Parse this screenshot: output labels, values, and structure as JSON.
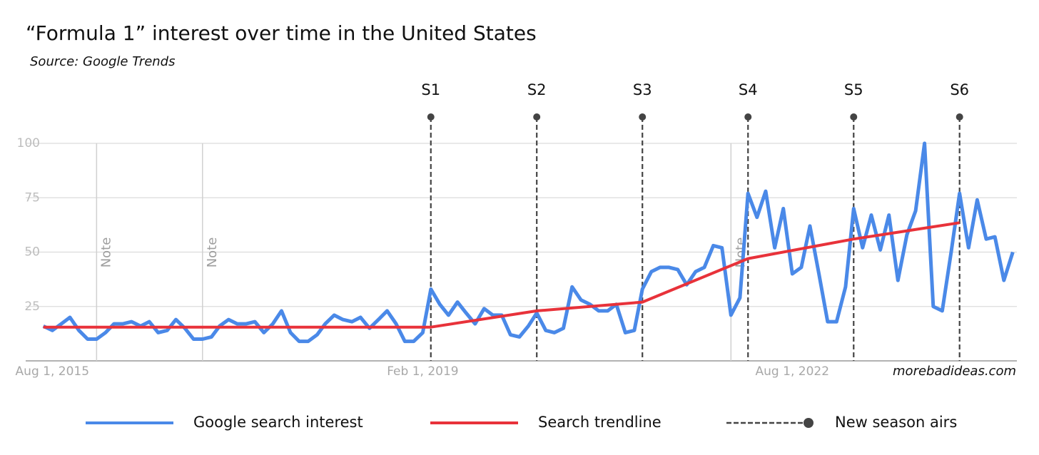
{
  "chart_data": {
    "type": "line",
    "title": "“Formula 1” interest over time in the United States",
    "subtitle": "Source: Google Trends",
    "watermark": "morebadideas.com",
    "xlim": [
      "2015-05-01",
      "2024-09-15"
    ],
    "xticks": [
      {
        "value": "2015-08-01",
        "label": "Aug 1, 2015"
      },
      {
        "value": "2019-02-01",
        "label": "Feb 1, 2019"
      },
      {
        "value": "2022-08-01",
        "label": "Aug 1, 2022"
      }
    ],
    "ylim": [
      0,
      100
    ],
    "yticks": [
      25,
      50,
      75,
      100
    ],
    "grid": true,
    "legend": "bottom",
    "notes": [
      {
        "x": "2016-01-01",
        "label": "Note"
      },
      {
        "x": "2017-01-01",
        "label": "Note"
      },
      {
        "x": "2022-01-01",
        "label": "Note"
      }
    ],
    "series": [
      {
        "name": "Google search interest",
        "color": "#4a89e8",
        "x": [
          "2015-07-01",
          "2015-08-01",
          "2015-09-01",
          "2015-10-01",
          "2015-11-01",
          "2015-12-01",
          "2016-01-01",
          "2016-02-01",
          "2016-03-01",
          "2016-04-01",
          "2016-05-01",
          "2016-06-01",
          "2016-07-01",
          "2016-08-01",
          "2016-09-01",
          "2016-10-01",
          "2016-11-01",
          "2016-12-01",
          "2017-01-01",
          "2017-02-01",
          "2017-03-01",
          "2017-04-01",
          "2017-05-01",
          "2017-06-01",
          "2017-07-01",
          "2017-08-01",
          "2017-09-01",
          "2017-10-01",
          "2017-11-01",
          "2017-12-01",
          "2018-01-01",
          "2018-02-01",
          "2018-03-01",
          "2018-04-01",
          "2018-05-01",
          "2018-06-01",
          "2018-07-01",
          "2018-08-01",
          "2018-09-01",
          "2018-10-01",
          "2018-11-01",
          "2018-12-01",
          "2019-01-01",
          "2019-02-01",
          "2019-03-01",
          "2019-04-01",
          "2019-05-01",
          "2019-06-01",
          "2019-07-01",
          "2019-08-01",
          "2019-09-01",
          "2019-10-01",
          "2019-11-01",
          "2019-12-01",
          "2020-01-01",
          "2020-02-01",
          "2020-03-01",
          "2020-04-01",
          "2020-05-01",
          "2020-06-01",
          "2020-07-01",
          "2020-08-01",
          "2020-09-01",
          "2020-10-01",
          "2020-11-01",
          "2020-12-01",
          "2021-01-01",
          "2021-02-01",
          "2021-03-01",
          "2021-04-01",
          "2021-05-01",
          "2021-06-01",
          "2021-07-01",
          "2021-08-01",
          "2021-09-01",
          "2021-10-01",
          "2021-11-01",
          "2021-12-01",
          "2022-01-01",
          "2022-02-01",
          "2022-03-01",
          "2022-04-01",
          "2022-05-01",
          "2022-06-01",
          "2022-07-01",
          "2022-08-01",
          "2022-09-01",
          "2022-10-01",
          "2022-11-01",
          "2022-12-01",
          "2023-01-01",
          "2023-02-01",
          "2023-03-01",
          "2023-04-01",
          "2023-05-01",
          "2023-06-01",
          "2023-07-01",
          "2023-08-01",
          "2023-09-01",
          "2023-10-01",
          "2023-11-01",
          "2023-12-01",
          "2024-01-01",
          "2024-02-01",
          "2024-03-01",
          "2024-04-01",
          "2024-05-01",
          "2024-06-01",
          "2024-07-01",
          "2024-08-01",
          "2024-09-01"
        ],
        "values": [
          16,
          14,
          17,
          20,
          14,
          10,
          10,
          13,
          17,
          17,
          18,
          16,
          18,
          13,
          14,
          19,
          15,
          10,
          10,
          11,
          16,
          19,
          17,
          17,
          18,
          13,
          17,
          23,
          13,
          9,
          9,
          12,
          17,
          21,
          19,
          18,
          20,
          15,
          19,
          23,
          17,
          9,
          9,
          13,
          33,
          26,
          21,
          27,
          22,
          17,
          24,
          21,
          21,
          12,
          11,
          16,
          22,
          14,
          13,
          15,
          34,
          28,
          26,
          23,
          23,
          26,
          13,
          14,
          33,
          41,
          43,
          43,
          42,
          35,
          41,
          43,
          53,
          52,
          21,
          29,
          77,
          66,
          78,
          52,
          70,
          40,
          43,
          62,
          40,
          18,
          18,
          34,
          70,
          52,
          67,
          51,
          67,
          37,
          58,
          69,
          100,
          25,
          23,
          50,
          77,
          52,
          74,
          56,
          57,
          37,
          50
        ]
      },
      {
        "name": "Search trendline",
        "color": "#e8323a",
        "x": [
          "2015-07-01",
          "2019-03-01",
          "2020-03-01",
          "2021-03-01",
          "2022-03-01",
          "2023-03-01",
          "2024-03-01"
        ],
        "values": [
          15.5,
          15.5,
          23,
          27,
          47,
          56,
          63.5
        ]
      },
      {
        "name": "New season airs",
        "color": "#444444",
        "x": [
          "2019-03-01",
          "2020-03-01",
          "2021-03-01",
          "2022-03-01",
          "2023-03-01",
          "2024-03-01"
        ],
        "labels": [
          "S1",
          "S2",
          "S3",
          "S4",
          "S5",
          "S6"
        ]
      }
    ]
  }
}
